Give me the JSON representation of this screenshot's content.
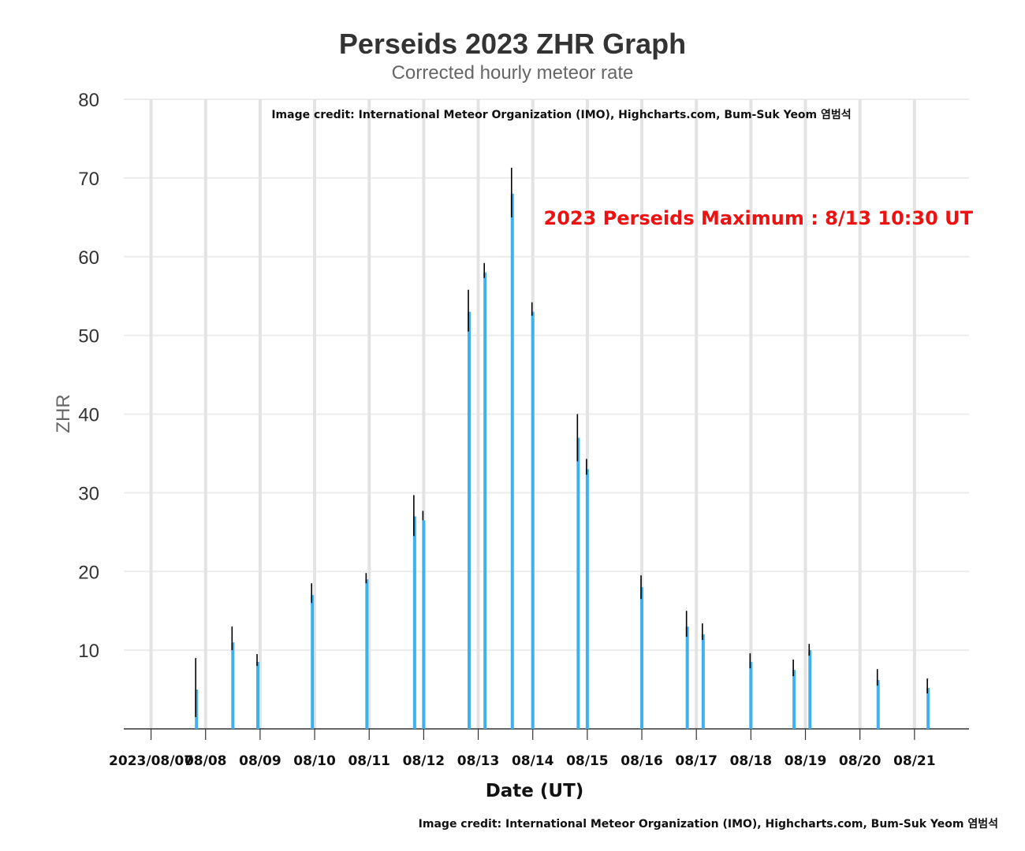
{
  "chart_data": {
    "type": "bar",
    "title": "Perseids 2023 ZHR Graph",
    "subtitle": "Corrected hourly meteor rate",
    "xlabel": "Date (UT)",
    "ylabel": "ZHR",
    "ylim": [
      0,
      80
    ],
    "yticks": [
      10,
      20,
      30,
      40,
      50,
      60,
      70,
      80
    ],
    "xlim": [
      "2023-08-06T12:00",
      "2023-08-22T00:00"
    ],
    "xtick_labels": [
      "2023/08/07",
      "08/08",
      "08/09",
      "08/10",
      "08/11",
      "08/12",
      "08/13",
      "08/14",
      "08/15",
      "08/16",
      "08/17",
      "08/18",
      "08/19",
      "08/20",
      "08/21"
    ],
    "grid": true,
    "bar_color": "#3fb1ee",
    "error_bar_color": "#000000",
    "annotation": {
      "text": "2023 Perseids Maximum : 8/13 10:30 UT",
      "color": "#ee1111"
    },
    "credit_top": "Image credit: International Meteor Organization (IMO), Highcharts.com, Bum-Suk Yeom 염범석",
    "credit_bottom": "Image credit: International Meteor Organization (IMO), Highcharts.com, Bum-Suk Yeom 염범석",
    "points": [
      {
        "date": "2023-08-07T20:00",
        "zhr": 5,
        "low": 1.5,
        "high": 9
      },
      {
        "date": "2023-08-08T12:00",
        "zhr": 11,
        "low": 10,
        "high": 13
      },
      {
        "date": "2023-08-08T23:00",
        "zhr": 8.5,
        "low": 8,
        "high": 9.5
      },
      {
        "date": "2023-08-09T23:00",
        "zhr": 17,
        "low": 16,
        "high": 18.5
      },
      {
        "date": "2023-08-10T23:00",
        "zhr": 19,
        "low": 18.5,
        "high": 19.8
      },
      {
        "date": "2023-08-11T20:00",
        "zhr": 27,
        "low": 24.5,
        "high": 29.7
      },
      {
        "date": "2023-08-12T00:00",
        "zhr": 26.5,
        "low": 26.5,
        "high": 27.7
      },
      {
        "date": "2023-08-12T20:00",
        "zhr": 53,
        "low": 50.5,
        "high": 55.8
      },
      {
        "date": "2023-08-13T03:00",
        "zhr": 58,
        "low": 57.3,
        "high": 59.2
      },
      {
        "date": "2023-08-13T15:00",
        "zhr": 68,
        "low": 65,
        "high": 71.3
      },
      {
        "date": "2023-08-14T00:00",
        "zhr": 53,
        "low": 52.5,
        "high": 54.2
      },
      {
        "date": "2023-08-14T20:00",
        "zhr": 37,
        "low": 34,
        "high": 40
      },
      {
        "date": "2023-08-15T00:00",
        "zhr": 33,
        "low": 32.3,
        "high": 34.3
      },
      {
        "date": "2023-08-16T00:00",
        "zhr": 18,
        "low": 16.5,
        "high": 19.5
      },
      {
        "date": "2023-08-16T20:00",
        "zhr": 13,
        "low": 11.7,
        "high": 15
      },
      {
        "date": "2023-08-17T03:00",
        "zhr": 12,
        "low": 11.3,
        "high": 13.4
      },
      {
        "date": "2023-08-18T00:00",
        "zhr": 8.5,
        "low": 7.7,
        "high": 9.6
      },
      {
        "date": "2023-08-18T19:00",
        "zhr": 7.5,
        "low": 6.7,
        "high": 8.8
      },
      {
        "date": "2023-08-19T02:00",
        "zhr": 10,
        "low": 9.3,
        "high": 10.8
      },
      {
        "date": "2023-08-20T08:00",
        "zhr": 6.2,
        "low": 5.5,
        "high": 7.6
      },
      {
        "date": "2023-08-21T06:00",
        "zhr": 5.2,
        "low": 4.5,
        "high": 6.4
      }
    ]
  }
}
